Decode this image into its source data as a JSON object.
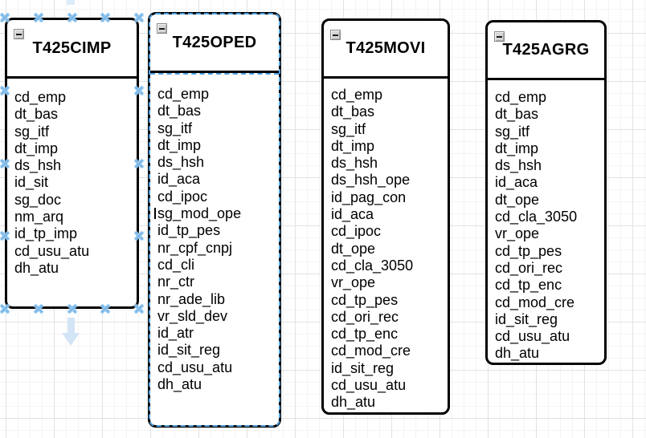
{
  "app": {
    "view": "er-diagram-canvas"
  },
  "canvas": {
    "background_color": "#ffffff",
    "grid_minor_color": "#f4f4f4",
    "grid_major_color": "#e2e2e2"
  },
  "selection": {
    "primary_table": "T425CIMP",
    "primary_style": "x-handles",
    "handle_color": "#7cb9ea",
    "secondary_table": "T425OPED",
    "secondary_style": "dashed-outline",
    "outline_color": "#4f9fdf",
    "direction_arrow_color": "#d2e4f6"
  },
  "tables": [
    {
      "title": "T425CIMP",
      "collapse_icon": "minus-icon",
      "fields": [
        "cd_emp",
        "dt_bas",
        "sg_itf",
        "dt_imp",
        "ds_hsh",
        "id_sit",
        "sg_doc",
        "nm_arq",
        "id_tp_imp",
        "cd_usu_atu",
        "dh_atu"
      ]
    },
    {
      "title": "T425OPED",
      "collapse_icon": "minus-icon",
      "fields": [
        "cd_emp",
        "dt_bas",
        "sg_itf",
        "dt_imp",
        "ds_hsh",
        "id_aca",
        "cd_ipoc",
        "sg_mod_ope",
        "id_tp_pes",
        "nr_cpf_cnpj",
        "cd_cli",
        "nr_ctr",
        "nr_ade_lib",
        "vr_sld_dev",
        "id_atr",
        "id_sit_reg",
        "cd_usu_atu",
        "dh_atu"
      ]
    },
    {
      "title": "T425MOVI",
      "collapse_icon": "minus-icon",
      "fields": [
        "cd_emp",
        "dt_bas",
        "sg_itf",
        "dt_imp",
        "ds_hsh",
        "ds_hsh_ope",
        "id_pag_con",
        "id_aca",
        "cd_ipoc",
        "dt_ope",
        "cd_cla_3050",
        "vr_ope",
        "cd_tp_pes",
        "cd_ori_rec",
        "cd_tp_enc",
        "cd_mod_cre",
        "id_sit_reg",
        "cd_usu_atu",
        "dh_atu"
      ]
    },
    {
      "title": "T425AGRG",
      "collapse_icon": "minus-icon",
      "fields": [
        "cd_emp",
        "dt_bas",
        "sg_itf",
        "dt_imp",
        "ds_hsh",
        "id_aca",
        "dt_ope",
        "cd_cla_3050",
        "vr_ope",
        "cd_tp_pes",
        "cd_ori_rec",
        "cd_tp_enc",
        "cd_mod_cre",
        "id_sit_reg",
        "cd_usu_atu",
        "dh_atu"
      ]
    }
  ]
}
